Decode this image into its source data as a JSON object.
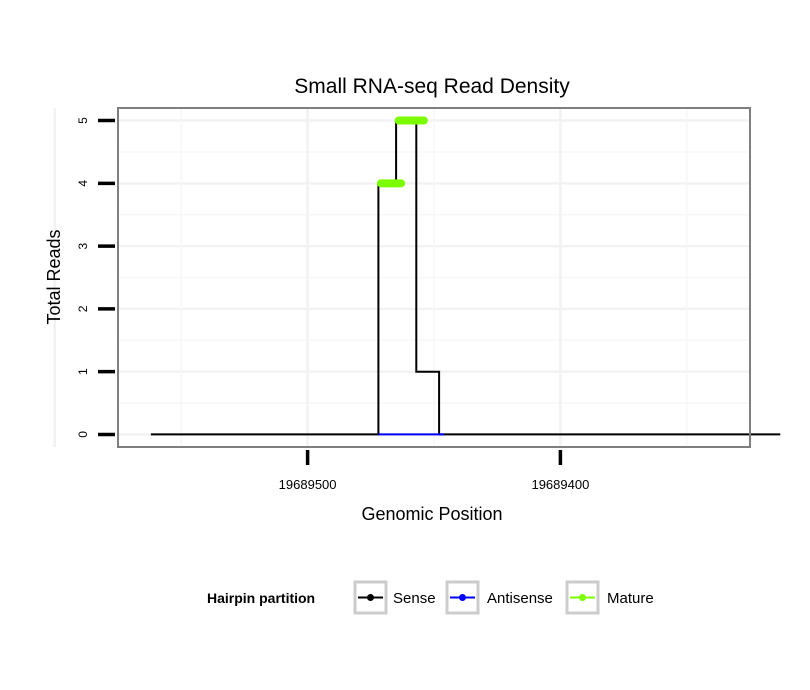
{
  "chart_data": {
    "type": "line",
    "title": "Small RNA-seq Read Density",
    "xlabel": "Genomic Position",
    "ylabel": "Total Reads",
    "x_reversed": true,
    "xlim": [
      19689575,
      19689325
    ],
    "ylim": [
      -0.2,
      5.2
    ],
    "x_ticks": [
      19689500,
      19689400
    ],
    "x_tick_labels": [
      "19689500",
      "19689400"
    ],
    "y_ticks": [
      0,
      1,
      2,
      3,
      4,
      5
    ],
    "y_tick_labels": [
      "0",
      "1",
      "2",
      "3",
      "4",
      "5"
    ],
    "grid": true,
    "legend": {
      "position": "bottom",
      "title": "Hairpin partition",
      "entries": [
        "Sense",
        "Antisense",
        "Mature"
      ]
    },
    "series": [
      {
        "name": "Sense",
        "color": "#000000",
        "x": [
          19689562,
          19689472,
          19689472,
          19689465,
          19689465,
          19689457,
          19689457,
          19689448,
          19689448,
          19689446,
          19689446,
          19689313
        ],
        "y": [
          0,
          0,
          4,
          4,
          5,
          5,
          1,
          1,
          0,
          0,
          0,
          0
        ]
      },
      {
        "name": "Antisense",
        "color": "#0000ff",
        "x": [
          19689472,
          19689446
        ],
        "y": [
          0,
          0
        ]
      },
      {
        "name": "Mature",
        "color": "#7cfc00",
        "x": [
          19689471,
          19689463,
          19689464,
          19689454
        ],
        "y": [
          4,
          4,
          5,
          5
        ],
        "segments": [
          [
            0,
            1
          ],
          [
            2,
            3
          ]
        ]
      }
    ]
  }
}
